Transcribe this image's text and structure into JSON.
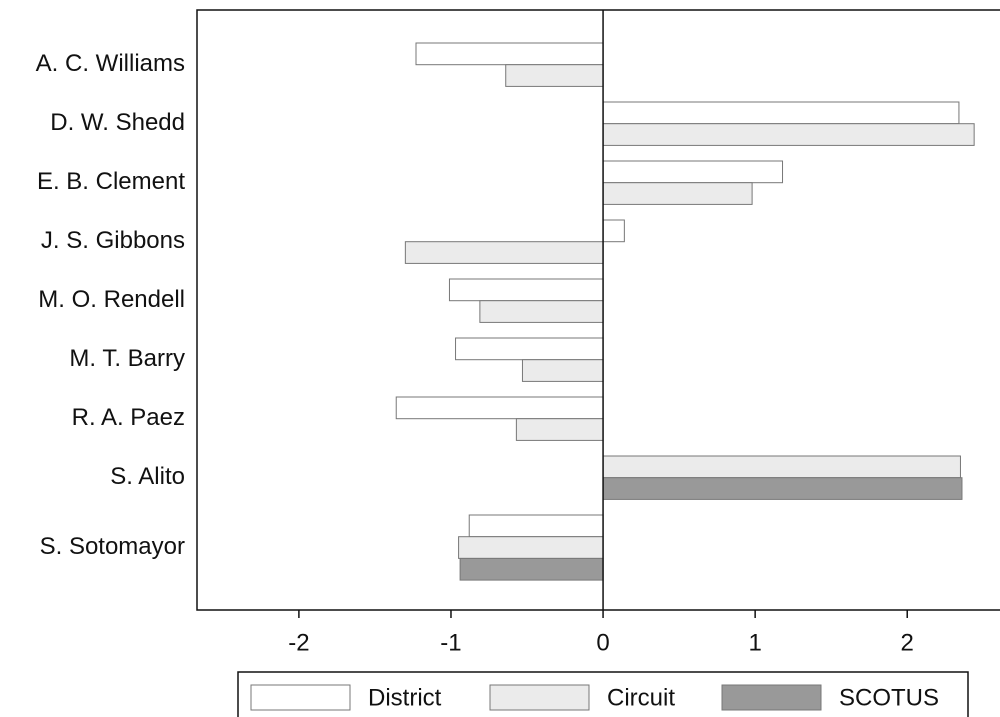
{
  "chart_data": {
    "type": "barh",
    "categories": [
      "A. C. Williams",
      "D. W. Shedd",
      "E. B. Clement",
      "J. S. Gibbons",
      "M. O. Rendell",
      "M. T. Barry",
      "R. A. Paez",
      "S. Alito",
      "S. Sotomayor"
    ],
    "series": [
      {
        "name": "District",
        "color": "#ffffff",
        "values": [
          -1.23,
          2.34,
          1.18,
          0.14,
          -1.01,
          -0.97,
          -1.36,
          null,
          -0.88
        ]
      },
      {
        "name": "Circuit",
        "color": "#ebebeb",
        "values": [
          -0.64,
          2.44,
          0.98,
          -1.3,
          -0.81,
          -0.53,
          -0.57,
          2.35,
          -0.95
        ]
      },
      {
        "name": "SCOTUS",
        "color": "#999999",
        "values": [
          null,
          null,
          null,
          null,
          null,
          null,
          null,
          2.36,
          -0.94
        ]
      }
    ],
    "xlim": [
      -2.67,
      2.61
    ],
    "xticks": [
      -2,
      -1,
      0,
      1,
      2
    ]
  }
}
